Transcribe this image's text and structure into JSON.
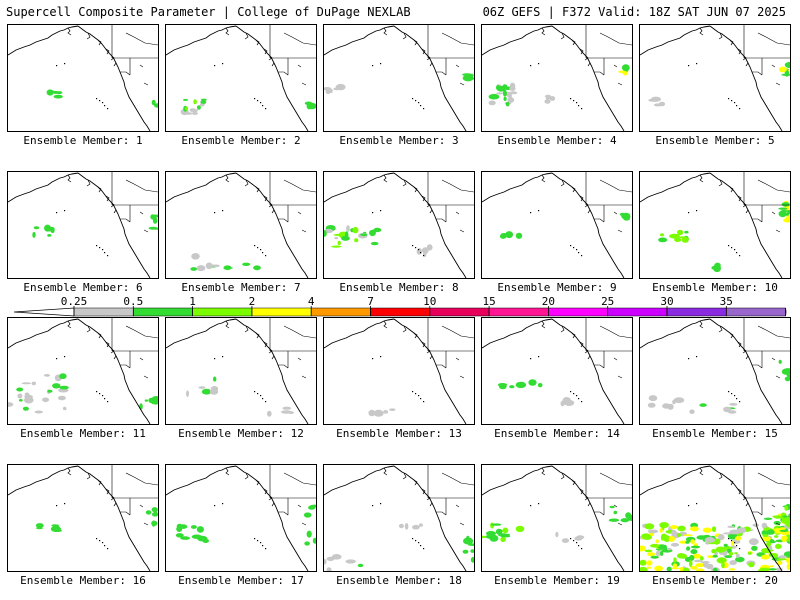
{
  "header": {
    "left_title": "Supercell Composite Parameter | College of DuPage NEXLAB",
    "right_title": "06Z GEFS | F372 Valid: 18Z SAT JUN 07 2025"
  },
  "colorbar": {
    "labels": [
      "0.25",
      "0.5",
      "1",
      "2",
      "4",
      "7",
      "10",
      "15",
      "20",
      "25",
      "30",
      "35"
    ],
    "colors": [
      "#c8c8c8",
      "#32dc32",
      "#7cfc00",
      "#ffff00",
      "#ff9900",
      "#ff0000",
      "#e6005c",
      "#ff1493",
      "#ff00ff",
      "#cc00ff",
      "#8a2be2",
      "#9966cc",
      "#00e5ee"
    ]
  },
  "members": [
    {
      "caption": "Ensemble Member: 1"
    },
    {
      "caption": "Ensemble Member: 2"
    },
    {
      "caption": "Ensemble Member: 3"
    },
    {
      "caption": "Ensemble Member: 4"
    },
    {
      "caption": "Ensemble Member: 5"
    },
    {
      "caption": "Ensemble Member: 6"
    },
    {
      "caption": "Ensemble Member: 7"
    },
    {
      "caption": "Ensemble Member: 8"
    },
    {
      "caption": "Ensemble Member: 9"
    },
    {
      "caption": "Ensemble Member: 10"
    },
    {
      "caption": "Ensemble Member: 11"
    },
    {
      "caption": "Ensemble Member: 12"
    },
    {
      "caption": "Ensemble Member: 13"
    },
    {
      "caption": "Ensemble Member: 14"
    },
    {
      "caption": "Ensemble Member: 15"
    },
    {
      "caption": "Ensemble Member: 16"
    },
    {
      "caption": "Ensemble Member: 17"
    },
    {
      "caption": "Ensemble Member: 18"
    },
    {
      "caption": "Ensemble Member: 19"
    },
    {
      "caption": "Ensemble Member: 20"
    }
  ]
}
